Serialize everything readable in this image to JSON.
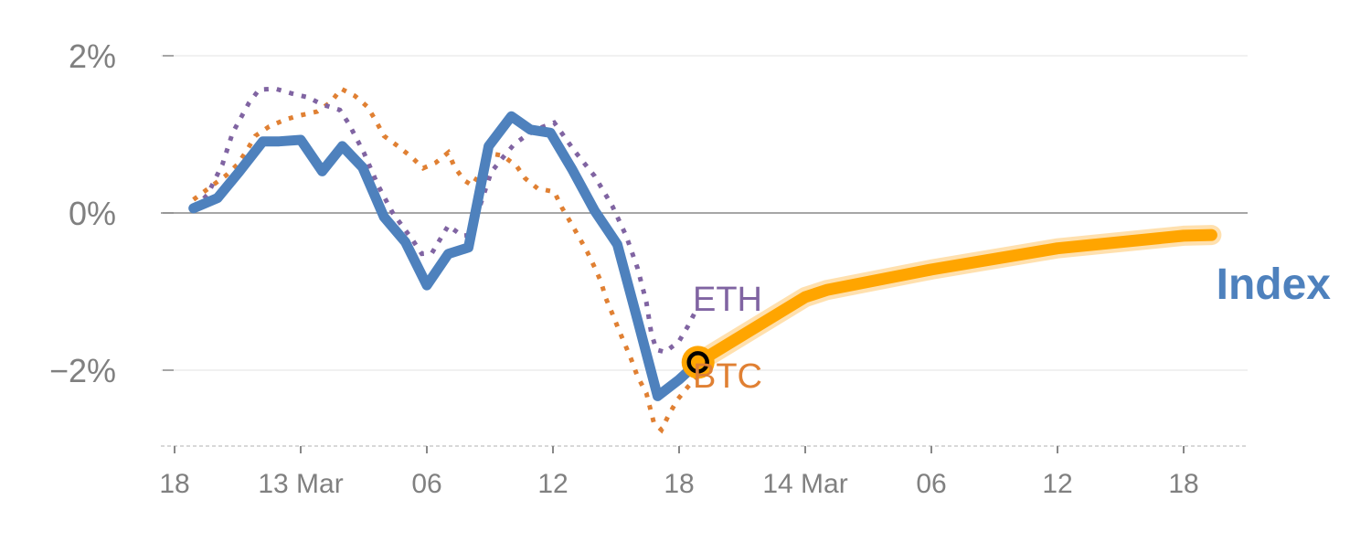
{
  "chart_data": {
    "type": "line",
    "title": "",
    "xlabel": "",
    "ylabel": "",
    "x_tick_labels": [
      "18",
      "13 Mar",
      "06",
      "12",
      "18",
      "14 Mar",
      "06",
      "12",
      "18"
    ],
    "y_ticks": [
      {
        "value": 2,
        "label": "2%"
      },
      {
        "value": 0,
        "label": "0%"
      },
      {
        "value": -2,
        "label": "−2%"
      }
    ],
    "ylim": [
      -2.97,
      2.05
    ],
    "xlim": [
      -0.1,
      8.5
    ],
    "colors": {
      "index": "#4e81bd",
      "eth": "#8064a2",
      "btc": "#e08033",
      "projection": "#ffa500",
      "marker_ring": "#000000"
    },
    "series": [
      {
        "name": "Index",
        "label": "Index",
        "style": "solid",
        "points": [
          [
            0.15,
            0.06
          ],
          [
            0.34,
            0.19
          ],
          [
            0.51,
            0.52
          ],
          [
            0.7,
            0.91
          ],
          [
            0.83,
            0.91
          ],
          [
            1.0,
            0.93
          ],
          [
            1.17,
            0.53
          ],
          [
            1.33,
            0.85
          ],
          [
            1.49,
            0.58
          ],
          [
            1.66,
            -0.05
          ],
          [
            1.83,
            -0.37
          ],
          [
            2.0,
            -0.92
          ],
          [
            2.17,
            -0.52
          ],
          [
            2.33,
            -0.44
          ],
          [
            2.49,
            0.85
          ],
          [
            2.67,
            1.23
          ],
          [
            2.82,
            1.06
          ],
          [
            2.98,
            1.02
          ],
          [
            3.15,
            0.56
          ],
          [
            3.33,
            0.03
          ],
          [
            3.51,
            -0.4
          ],
          [
            3.67,
            -1.36
          ],
          [
            3.83,
            -2.33
          ],
          [
            4.0,
            -2.12
          ],
          [
            4.15,
            -1.9
          ]
        ]
      },
      {
        "name": "Index projection",
        "style": "thick",
        "points": [
          [
            4.15,
            -1.9
          ],
          [
            5.0,
            -1.07
          ],
          [
            5.17,
            -0.98
          ],
          [
            6.0,
            -0.72
          ],
          [
            7.0,
            -0.45
          ],
          [
            8.0,
            -0.29
          ],
          [
            8.22,
            -0.28
          ]
        ]
      },
      {
        "name": "ETH",
        "label": "ETH",
        "style": "dotted",
        "points": [
          [
            0.16,
            0.07
          ],
          [
            0.26,
            0.23
          ],
          [
            0.38,
            0.62
          ],
          [
            0.46,
            1.02
          ],
          [
            0.59,
            1.4
          ],
          [
            0.67,
            1.57
          ],
          [
            0.8,
            1.58
          ],
          [
            0.93,
            1.52
          ],
          [
            1.06,
            1.47
          ],
          [
            1.17,
            1.38
          ],
          [
            1.31,
            1.31
          ],
          [
            1.38,
            1.14
          ],
          [
            1.5,
            0.77
          ],
          [
            1.61,
            0.36
          ],
          [
            1.73,
            0
          ],
          [
            1.89,
            -0.35
          ],
          [
            1.96,
            -0.52
          ],
          [
            2.04,
            -0.51
          ],
          [
            2.17,
            -0.16
          ],
          [
            2.28,
            -0.29
          ],
          [
            2.35,
            -0.28
          ],
          [
            2.43,
            0.13
          ],
          [
            2.51,
            0.52
          ],
          [
            2.6,
            0.7
          ],
          [
            2.69,
            0.87
          ],
          [
            2.8,
            1.0
          ],
          [
            2.91,
            1.09
          ],
          [
            3.01,
            1.15
          ],
          [
            3.17,
            0.79
          ],
          [
            3.33,
            0.47
          ],
          [
            3.47,
            0.09
          ],
          [
            3.58,
            -0.29
          ],
          [
            3.67,
            -0.7
          ],
          [
            3.74,
            -1.13
          ],
          [
            3.78,
            -1.53
          ],
          [
            3.82,
            -1.74
          ],
          [
            3.89,
            -1.77
          ],
          [
            4.0,
            -1.63
          ],
          [
            4.07,
            -1.44
          ],
          [
            4.14,
            -1.22
          ]
        ]
      },
      {
        "name": "BTC",
        "label": "BTC",
        "style": "dotted",
        "points": [
          [
            0.15,
            0.17
          ],
          [
            0.3,
            0.35
          ],
          [
            0.41,
            0.48
          ],
          [
            0.5,
            0.62
          ],
          [
            0.57,
            0.79
          ],
          [
            0.64,
            0.98
          ],
          [
            0.75,
            1.1
          ],
          [
            0.88,
            1.19
          ],
          [
            0.99,
            1.24
          ],
          [
            1.13,
            1.29
          ],
          [
            1.24,
            1.41
          ],
          [
            1.32,
            1.58
          ],
          [
            1.43,
            1.49
          ],
          [
            1.53,
            1.35
          ],
          [
            1.6,
            1.16
          ],
          [
            1.66,
            0.98
          ],
          [
            1.77,
            0.85
          ],
          [
            1.88,
            0.71
          ],
          [
            1.97,
            0.57
          ],
          [
            2.07,
            0.64
          ],
          [
            2.17,
            0.77
          ],
          [
            2.22,
            0.58
          ],
          [
            2.3,
            0.41
          ],
          [
            2.36,
            0.35
          ],
          [
            2.43,
            0.53
          ],
          [
            2.49,
            0.76
          ],
          [
            2.6,
            0.73
          ],
          [
            2.71,
            0.6
          ],
          [
            2.78,
            0.44
          ],
          [
            2.88,
            0.31
          ],
          [
            3.01,
            0.27
          ],
          [
            3.07,
            0.07
          ],
          [
            3.14,
            -0.12
          ],
          [
            3.2,
            -0.29
          ],
          [
            3.27,
            -0.49
          ],
          [
            3.33,
            -0.69
          ],
          [
            3.38,
            -0.87
          ],
          [
            3.42,
            -1.09
          ],
          [
            3.47,
            -1.28
          ],
          [
            3.52,
            -1.48
          ],
          [
            3.57,
            -1.67
          ],
          [
            3.62,
            -1.86
          ],
          [
            3.67,
            -2.08
          ],
          [
            3.74,
            -2.29
          ],
          [
            3.8,
            -2.67
          ],
          [
            3.86,
            -2.76
          ],
          [
            3.92,
            -2.56
          ],
          [
            3.99,
            -2.37
          ],
          [
            4.07,
            -2.21
          ],
          [
            4.14,
            -2.09
          ]
        ]
      }
    ],
    "current_marker": [
      4.15,
      -1.9
    ],
    "grid": true,
    "legend": "inline labels at line ends"
  }
}
